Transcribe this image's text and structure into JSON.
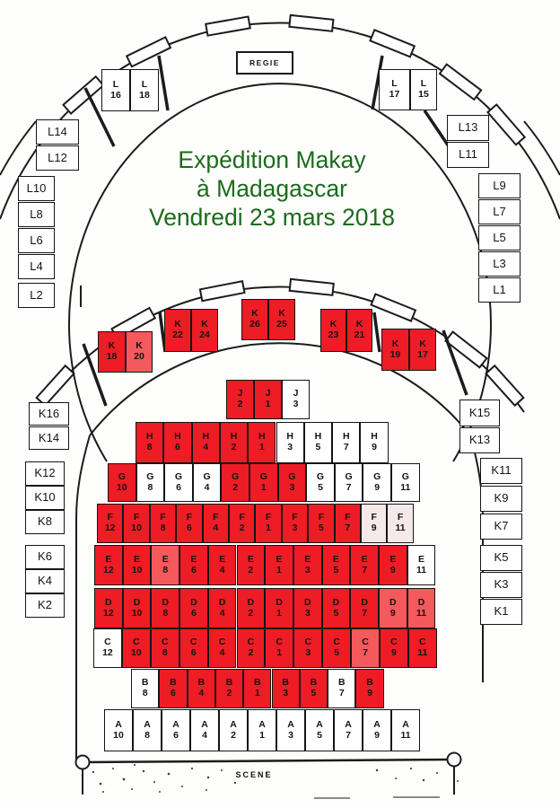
{
  "event": {
    "title_lines": [
      "Expédition Makay",
      "à Madagascar",
      "Vendredi 23 mars 2018"
    ],
    "title_color": "#1c6b1c"
  },
  "labels": {
    "booth": "REGIE",
    "stage": "SCENE"
  },
  "status_colors": {
    "sold": "#ee1c24",
    "sold_light": "#f4595c",
    "pale": "#f5e9e9",
    "free": "#ffffff"
  },
  "floor_rows": [
    {
      "row": "J",
      "seats": [
        {
          "num": "2",
          "status": "sold"
        },
        {
          "num": "1",
          "status": "sold"
        },
        {
          "num": "3",
          "status": "free"
        }
      ]
    },
    {
      "row": "H",
      "seats": [
        {
          "num": "8",
          "status": "sold"
        },
        {
          "num": "6",
          "status": "sold"
        },
        {
          "num": "4",
          "status": "sold"
        },
        {
          "num": "2",
          "status": "sold"
        },
        {
          "num": "1",
          "status": "sold"
        },
        {
          "num": "3",
          "status": "free"
        },
        {
          "num": "5",
          "status": "free"
        },
        {
          "num": "7",
          "status": "free"
        },
        {
          "num": "9",
          "status": "free"
        }
      ]
    },
    {
      "row": "G",
      "seats": [
        {
          "num": "10",
          "status": "sold"
        },
        {
          "num": "8",
          "status": "free"
        },
        {
          "num": "6",
          "status": "free"
        },
        {
          "num": "4",
          "status": "free"
        },
        {
          "num": "2",
          "status": "sold"
        },
        {
          "num": "1",
          "status": "sold"
        },
        {
          "num": "3",
          "status": "sold"
        },
        {
          "num": "5",
          "status": "free"
        },
        {
          "num": "7",
          "status": "free"
        },
        {
          "num": "9",
          "status": "free"
        },
        {
          "num": "11",
          "status": "free"
        }
      ]
    },
    {
      "row": "F",
      "seats": [
        {
          "num": "12",
          "status": "sold"
        },
        {
          "num": "10",
          "status": "sold"
        },
        {
          "num": "8",
          "status": "sold"
        },
        {
          "num": "6",
          "status": "sold"
        },
        {
          "num": "4",
          "status": "sold"
        },
        {
          "num": "2",
          "status": "sold"
        },
        {
          "num": "1",
          "status": "sold"
        },
        {
          "num": "3",
          "status": "sold"
        },
        {
          "num": "5",
          "status": "sold"
        },
        {
          "num": "7",
          "status": "sold"
        },
        {
          "num": "9",
          "status": "pale"
        },
        {
          "num": "11",
          "status": "pale"
        }
      ]
    },
    {
      "row": "E",
      "seats": [
        {
          "num": "12",
          "status": "sold"
        },
        {
          "num": "10",
          "status": "sold"
        },
        {
          "num": "8",
          "status": "sold_light"
        },
        {
          "num": "6",
          "status": "sold"
        },
        {
          "num": "4",
          "status": "sold"
        },
        {
          "num": "2",
          "status": "sold"
        },
        {
          "num": "1",
          "status": "sold"
        },
        {
          "num": "3",
          "status": "sold"
        },
        {
          "num": "5",
          "status": "sold"
        },
        {
          "num": "7",
          "status": "sold"
        },
        {
          "num": "9",
          "status": "sold"
        },
        {
          "num": "11",
          "status": "free"
        }
      ]
    },
    {
      "row": "D",
      "seats": [
        {
          "num": "12",
          "status": "sold"
        },
        {
          "num": "10",
          "status": "sold"
        },
        {
          "num": "8",
          "status": "sold"
        },
        {
          "num": "6",
          "status": "sold"
        },
        {
          "num": "4",
          "status": "sold"
        },
        {
          "num": "2",
          "status": "sold"
        },
        {
          "num": "1",
          "status": "sold"
        },
        {
          "num": "3",
          "status": "sold"
        },
        {
          "num": "5",
          "status": "sold"
        },
        {
          "num": "7",
          "status": "sold"
        },
        {
          "num": "9",
          "status": "sold_light"
        },
        {
          "num": "11",
          "status": "sold_light"
        }
      ]
    },
    {
      "row": "C",
      "seats": [
        {
          "num": "12",
          "status": "free"
        },
        {
          "num": "10",
          "status": "sold"
        },
        {
          "num": "8",
          "status": "sold"
        },
        {
          "num": "6",
          "status": "sold"
        },
        {
          "num": "4",
          "status": "sold"
        },
        {
          "num": "2",
          "status": "sold"
        },
        {
          "num": "1",
          "status": "sold"
        },
        {
          "num": "3",
          "status": "sold"
        },
        {
          "num": "5",
          "status": "sold"
        },
        {
          "num": "7",
          "status": "sold_light"
        },
        {
          "num": "9",
          "status": "sold"
        },
        {
          "num": "11",
          "status": "sold"
        }
      ]
    },
    {
      "row": "B",
      "seats": [
        {
          "num": "8",
          "status": "free"
        },
        {
          "num": "6",
          "status": "sold"
        },
        {
          "num": "4",
          "status": "sold"
        },
        {
          "num": "2",
          "status": "sold"
        },
        {
          "num": "1",
          "status": "sold"
        },
        {
          "num": "3",
          "status": "sold"
        },
        {
          "num": "5",
          "status": "sold"
        },
        {
          "num": "7",
          "status": "free"
        },
        {
          "num": "9",
          "status": "sold"
        }
      ]
    },
    {
      "row": "A",
      "seats": [
        {
          "num": "10",
          "status": "free"
        },
        {
          "num": "8",
          "status": "free"
        },
        {
          "num": "6",
          "status": "free"
        },
        {
          "num": "4",
          "status": "free"
        },
        {
          "num": "2",
          "status": "free"
        },
        {
          "num": "1",
          "status": "free"
        },
        {
          "num": "3",
          "status": "free"
        },
        {
          "num": "5",
          "status": "free"
        },
        {
          "num": "7",
          "status": "free"
        },
        {
          "num": "9",
          "status": "free"
        },
        {
          "num": "11",
          "status": "free"
        }
      ]
    }
  ],
  "balcony_seats": [
    {
      "id": "K18",
      "row": "K",
      "num": "18",
      "status": "sold"
    },
    {
      "id": "K20",
      "row": "K",
      "num": "20",
      "status": "sold_light"
    },
    {
      "id": "K22",
      "row": "K",
      "num": "22",
      "status": "sold"
    },
    {
      "id": "K24",
      "row": "K",
      "num": "24",
      "status": "sold"
    },
    {
      "id": "K26",
      "row": "K",
      "num": "26",
      "status": "sold"
    },
    {
      "id": "K25",
      "row": "K",
      "num": "25",
      "status": "sold"
    },
    {
      "id": "K23",
      "row": "K",
      "num": "23",
      "status": "sold"
    },
    {
      "id": "K21",
      "row": "K",
      "num": "21",
      "status": "sold"
    },
    {
      "id": "K19",
      "row": "K",
      "num": "19",
      "status": "sold"
    },
    {
      "id": "K17",
      "row": "K",
      "num": "17",
      "status": "sold"
    },
    {
      "id": "L16",
      "row": "L",
      "num": "16",
      "status": "free"
    },
    {
      "id": "L18",
      "row": "L",
      "num": "18",
      "status": "free"
    },
    {
      "id": "L17",
      "row": "L",
      "num": "17",
      "status": "free"
    },
    {
      "id": "L15",
      "row": "L",
      "num": "15",
      "status": "free"
    }
  ],
  "gallery_boxes": [
    {
      "id": "L14",
      "status": "free"
    },
    {
      "id": "L12",
      "status": "free"
    },
    {
      "id": "L13",
      "status": "free"
    },
    {
      "id": "L11",
      "status": "free"
    },
    {
      "id": "L10",
      "status": "free"
    },
    {
      "id": "L8",
      "status": "free"
    },
    {
      "id": "L6",
      "status": "free"
    },
    {
      "id": "L4",
      "status": "free"
    },
    {
      "id": "L2",
      "status": "free"
    },
    {
      "id": "L9",
      "status": "free"
    },
    {
      "id": "L7",
      "status": "free"
    },
    {
      "id": "L5",
      "status": "free"
    },
    {
      "id": "L3",
      "status": "free"
    },
    {
      "id": "L1",
      "status": "free"
    },
    {
      "id": "K16",
      "status": "free"
    },
    {
      "id": "K14",
      "status": "free"
    },
    {
      "id": "K15",
      "status": "free"
    },
    {
      "id": "K13",
      "status": "free"
    },
    {
      "id": "K12",
      "status": "free"
    },
    {
      "id": "K10",
      "status": "free"
    },
    {
      "id": "K8",
      "status": "free"
    },
    {
      "id": "K6",
      "status": "free"
    },
    {
      "id": "K4",
      "status": "free"
    },
    {
      "id": "K2",
      "status": "free"
    },
    {
      "id": "K11",
      "status": "free"
    },
    {
      "id": "K9",
      "status": "free"
    },
    {
      "id": "K7",
      "status": "free"
    },
    {
      "id": "K5",
      "status": "free"
    },
    {
      "id": "K3",
      "status": "free"
    },
    {
      "id": "K1",
      "status": "free"
    }
  ]
}
